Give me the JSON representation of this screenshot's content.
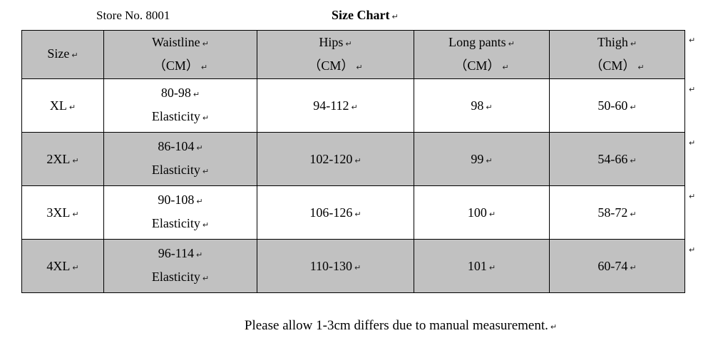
{
  "colors": {
    "shade": "#c1c1c1",
    "border": "#000000",
    "text": "#000000"
  },
  "marks": {
    "pilcrow": "↵"
  },
  "header": {
    "store_no": "Store No. 8001",
    "title": "Size Chart"
  },
  "table": {
    "columns": {
      "size": "Size",
      "waistline": "Waistline",
      "hips": "Hips",
      "long_pants": "Long pants",
      "thigh": "Thigh",
      "unit": "（CM）"
    },
    "rows": [
      {
        "size": "XL",
        "waist_range": "80-98",
        "waist_note": "Elasticity",
        "hips": "94-112",
        "long_pants": "98",
        "thigh": "50-60"
      },
      {
        "size": "2XL",
        "waist_range": "86-104",
        "waist_note": "Elasticity",
        "hips": "102-120",
        "long_pants": "99",
        "thigh": "54-66"
      },
      {
        "size": "3XL",
        "waist_range": "90-108",
        "waist_note": "Elasticity",
        "hips": "106-126",
        "long_pants": "100",
        "thigh": "58-72"
      },
      {
        "size": "4XL",
        "waist_range": "96-114",
        "waist_note": "Elasticity",
        "hips": "110-130",
        "long_pants": "101",
        "thigh": "60-74"
      }
    ]
  },
  "footer": {
    "note": "Please allow 1-3cm differs due to manual measurement."
  }
}
